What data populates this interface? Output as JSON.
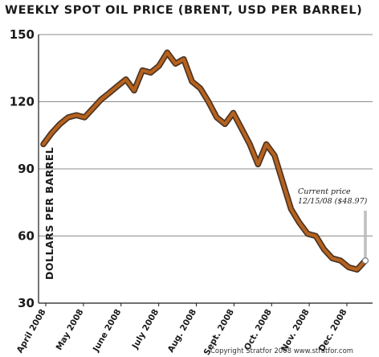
{
  "colors": {
    "line": "#b5621e",
    "line_shadow": "#4a3323",
    "grid": "#8c8c8c",
    "axis": "#1a1a1a",
    "background": "#ffffff"
  },
  "credit": "Copyright Stratfor 2008   www.stratfor.com",
  "chart_data": {
    "type": "line",
    "title": "WEEKLY SPOT OIL PRICE (BRENT, USD PER BARREL)",
    "xlabel": "",
    "ylabel": "DOLLARS PER BARREL",
    "ylim": [
      30,
      150
    ],
    "yticks": [
      30,
      60,
      90,
      120,
      150
    ],
    "x_tick_labels": [
      "April 2008",
      "May 2008",
      "June 2008",
      "July 2008",
      "Aug. 2008",
      "Sept. 2008",
      "Oct. 2008",
      "Nov. 2008",
      "Dec. 2008"
    ],
    "grid": true,
    "annotation": {
      "line1": "Current price",
      "line2": "12/15/08 ($48.97)",
      "value": 48.97
    },
    "series": [
      {
        "values": [
          101,
          106,
          110,
          113,
          114,
          113,
          117,
          121,
          124,
          127,
          130,
          125,
          134,
          133,
          136,
          142,
          137,
          139,
          129,
          126,
          120,
          113,
          110,
          115,
          108,
          101,
          92,
          101,
          96,
          84,
          72,
          66,
          61,
          60,
          54,
          50,
          49,
          46,
          45,
          49
        ]
      }
    ]
  }
}
